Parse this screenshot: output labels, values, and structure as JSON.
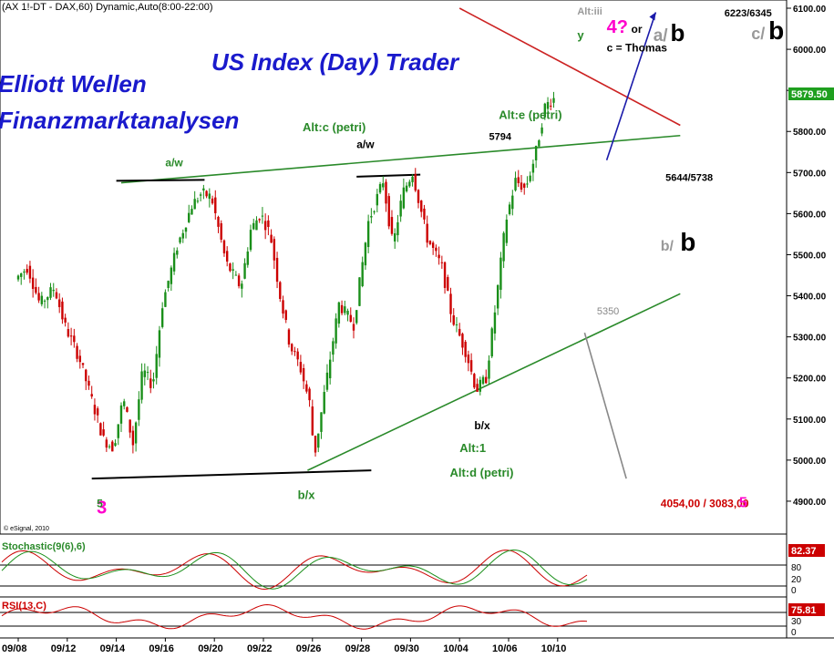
{
  "header": {
    "symbol_line": "(AX 1!-DT - DAX,60) Dynamic,Auto(8:00-22:00)",
    "brand_title": "US Index (Day) Trader",
    "brand_line1": "Elliott Wellen",
    "brand_line2": "Finanzmarktanalysen",
    "copyright": "© eSignal, 2010"
  },
  "colors": {
    "up_candle": "#1a8f1a",
    "down_candle": "#cc0000",
    "brand_blue": "#1a1acc",
    "trend_green": "#2a8a2a",
    "trend_red": "#cc2222",
    "projection_blue": "#1a1aaa",
    "projection_gray": "#888888",
    "price_tag_bg": "#1f9f1f",
    "rsi_tag_bg": "#cc0000"
  },
  "chart_data": {
    "type": "candlestick",
    "instrument": "DAX",
    "timeframe": "60",
    "x_ticks": [
      "09/08",
      "09/12",
      "09/14",
      "09/16",
      "09/20",
      "09/22",
      "09/26",
      "09/28",
      "09/30",
      "10/04",
      "10/06",
      "10/10"
    ],
    "y_ticks": [
      4900,
      5000,
      5100,
      5200,
      5300,
      5400,
      5500,
      5600,
      5700,
      5800,
      5900,
      6000,
      6100
    ],
    "ylim": [
      4820,
      6120
    ],
    "last_price": "5879.50",
    "price_path": [
      {
        "x": 0.0,
        "y": 5440
      },
      {
        "x": 0.25,
        "y": 5470
      },
      {
        "x": 0.5,
        "y": 5380
      },
      {
        "x": 0.8,
        "y": 5420
      },
      {
        "x": 1.0,
        "y": 5330
      },
      {
        "x": 1.3,
        "y": 5250
      },
      {
        "x": 1.5,
        "y": 5170
      },
      {
        "x": 1.8,
        "y": 5050
      },
      {
        "x": 2.0,
        "y": 5030
      },
      {
        "x": 2.2,
        "y": 5150
      },
      {
        "x": 2.4,
        "y": 5040
      },
      {
        "x": 2.6,
        "y": 5220
      },
      {
        "x": 2.8,
        "y": 5180
      },
      {
        "x": 3.0,
        "y": 5380
      },
      {
        "x": 3.3,
        "y": 5520
      },
      {
        "x": 3.6,
        "y": 5620
      },
      {
        "x": 3.8,
        "y": 5650
      },
      {
        "x": 4.0,
        "y": 5640
      },
      {
        "x": 4.3,
        "y": 5480
      },
      {
        "x": 4.6,
        "y": 5420
      },
      {
        "x": 4.8,
        "y": 5560
      },
      {
        "x": 5.0,
        "y": 5600
      },
      {
        "x": 5.2,
        "y": 5550
      },
      {
        "x": 5.4,
        "y": 5400
      },
      {
        "x": 5.6,
        "y": 5280
      },
      {
        "x": 5.8,
        "y": 5230
      },
      {
        "x": 6.0,
        "y": 5140
      },
      {
        "x": 6.1,
        "y": 5010
      },
      {
        "x": 6.3,
        "y": 5160
      },
      {
        "x": 6.6,
        "y": 5380
      },
      {
        "x": 6.9,
        "y": 5330
      },
      {
        "x": 7.2,
        "y": 5580
      },
      {
        "x": 7.5,
        "y": 5680
      },
      {
        "x": 7.7,
        "y": 5520
      },
      {
        "x": 7.9,
        "y": 5650
      },
      {
        "x": 8.1,
        "y": 5700
      },
      {
        "x": 8.4,
        "y": 5540
      },
      {
        "x": 8.7,
        "y": 5470
      },
      {
        "x": 8.9,
        "y": 5350
      },
      {
        "x": 9.2,
        "y": 5260
      },
      {
        "x": 9.4,
        "y": 5170
      },
      {
        "x": 9.6,
        "y": 5200
      },
      {
        "x": 9.8,
        "y": 5380
      },
      {
        "x": 10.0,
        "y": 5580
      },
      {
        "x": 10.2,
        "y": 5680
      },
      {
        "x": 10.4,
        "y": 5660
      },
      {
        "x": 10.6,
        "y": 5740
      },
      {
        "x": 10.8,
        "y": 5860
      },
      {
        "x": 10.95,
        "y": 5880
      }
    ],
    "trendlines": [
      {
        "name": "upper-green-trendline",
        "color": "#2a8a2a",
        "x1": 2.1,
        "y1": 5675,
        "x2": 13.5,
        "y2": 5790
      },
      {
        "name": "lower-green-trendline",
        "color": "#2a8a2a",
        "x1": 5.9,
        "y1": 4975,
        "x2": 13.5,
        "y2": 5405
      },
      {
        "name": "red-resistance-line",
        "color": "#cc2222",
        "x1": 9.0,
        "y1": 6100,
        "x2": 13.5,
        "y2": 5815
      },
      {
        "name": "black-upper-line",
        "color": "#000000",
        "x1": 2.0,
        "y1": 5680,
        "x2": 3.8,
        "y2": 5682
      },
      {
        "name": "black-upper-line-2",
        "color": "#000000",
        "x1": 6.9,
        "y1": 5690,
        "x2": 8.2,
        "y2": 5695
      },
      {
        "name": "black-lower-line",
        "color": "#000000",
        "x1": 1.5,
        "y1": 4955,
        "x2": 7.2,
        "y2": 4975
      },
      {
        "name": "blue-projection-line",
        "color": "#1a1aaa",
        "x1": 12.0,
        "y1": 5730,
        "x2": 13.0,
        "y2": 6090
      },
      {
        "name": "gray-projection-line",
        "color": "#888888",
        "x1": 11.55,
        "y1": 5310,
        "x2": 12.4,
        "y2": 4955
      }
    ],
    "annotations": [
      {
        "text": "Alt:c (petri)",
        "x": 5.8,
        "y": 5800,
        "color": "#2a8a2a",
        "size": 13,
        "bold": true
      },
      {
        "text": "Alt:e (petri)",
        "x": 9.8,
        "y": 5830,
        "color": "#2a8a2a",
        "size": 13,
        "bold": true
      },
      {
        "text": "Alt:1",
        "x": 9.0,
        "y": 5020,
        "color": "#2a8a2a",
        "size": 13,
        "bold": true
      },
      {
        "text": "Alt:d (petri)",
        "x": 8.8,
        "y": 4960,
        "color": "#2a8a2a",
        "size": 13,
        "bold": true
      },
      {
        "text": "a/w",
        "x": 3.0,
        "y": 5715,
        "color": "#2a8a2a",
        "size": 12,
        "bold": true
      },
      {
        "text": "b/x",
        "x": 5.7,
        "y": 4905,
        "color": "#2a8a2a",
        "size": 13,
        "bold": true
      },
      {
        "text": "a/w",
        "x": 6.9,
        "y": 5760,
        "color": "#000000",
        "size": 12,
        "bold": true
      },
      {
        "text": "b/x",
        "x": 9.3,
        "y": 5075,
        "color": "#000000",
        "size": 12,
        "bold": true
      },
      {
        "text": "5794",
        "x": 9.6,
        "y": 5780,
        "color": "#000000",
        "size": 11,
        "bold": true
      },
      {
        "text": "5644/5738",
        "x": 13.2,
        "y": 5680,
        "color": "#000000",
        "size": 11,
        "bold": true
      },
      {
        "text": "6223/6345",
        "x": 14.4,
        "y": 6080,
        "color": "#000000",
        "size": 11,
        "bold": true
      },
      {
        "text": "5350",
        "x": 11.8,
        "y": 5355,
        "color": "#888888",
        "size": 11,
        "bold": false
      },
      {
        "text": "4054,00 / 3083,00",
        "x": 13.1,
        "y": 4885,
        "color": "#cc0000",
        "size": 12,
        "bold": true
      },
      {
        "text": "5",
        "x": 14.7,
        "y": 4885,
        "color": "#ff00cc",
        "size": 16,
        "bold": true
      },
      {
        "text": "3",
        "x": 1.6,
        "y": 4870,
        "color": "#ff00cc",
        "size": 20,
        "bold": true
      },
      {
        "text": "Alt:iii",
        "x": 11.4,
        "y": 6085,
        "color": "#999999",
        "size": 11,
        "bold": true
      },
      {
        "text": "4?",
        "x": 12.0,
        "y": 6040,
        "color": "#ff00cc",
        "size": 20,
        "bold": true
      },
      {
        "text": "or",
        "x": 12.5,
        "y": 6040,
        "color": "#000000",
        "size": 12,
        "bold": true
      },
      {
        "text": "a/",
        "x": 12.95,
        "y": 6020,
        "color": "#999999",
        "size": 19,
        "bold": true
      },
      {
        "text": "b",
        "x": 13.3,
        "y": 6020,
        "color": "#000000",
        "size": 26,
        "bold": true
      },
      {
        "text": "c = Thomas",
        "x": 12.0,
        "y": 5995,
        "color": "#000000",
        "size": 12,
        "bold": true
      },
      {
        "text": "y",
        "x": 11.4,
        "y": 6025,
        "color": "#2a8a2a",
        "size": 13,
        "bold": true
      },
      {
        "text": "c/",
        "x": 14.95,
        "y": 6025,
        "color": "#999999",
        "size": 18,
        "bold": true
      },
      {
        "text": "b",
        "x": 15.3,
        "y": 6025,
        "color": "#000000",
        "size": 28,
        "bold": true
      },
      {
        "text": "b/",
        "x": 13.1,
        "y": 5510,
        "color": "#999999",
        "size": 16,
        "bold": true
      },
      {
        "text": "b",
        "x": 13.5,
        "y": 5510,
        "color": "#000000",
        "size": 28,
        "bold": true
      },
      {
        "text": "5",
        "x": 1.6,
        "y": 4885,
        "color": "#2a8a2a",
        "size": 12,
        "bold": true
      }
    ]
  },
  "indicators": {
    "stochastic": {
      "label": "Stochastic(9(6),6)",
      "value_tag": "82.37",
      "scale_labels": [
        "80",
        "20",
        "0"
      ]
    },
    "rsi": {
      "label": "RSI(13,C)",
      "value_tag": "75.81",
      "scale_labels": [
        "70",
        "30",
        "0"
      ]
    }
  }
}
